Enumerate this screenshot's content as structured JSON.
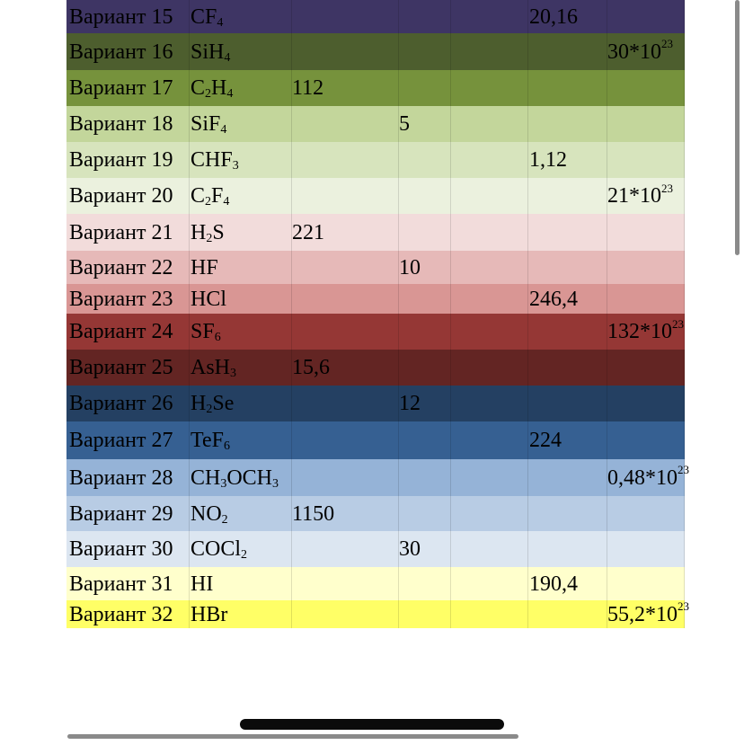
{
  "table": {
    "rows": [
      {
        "variant": "Вариант 15",
        "formula": [
          "CF",
          "4",
          ""
        ],
        "col_a": "",
        "col_b": "",
        "col_c": "",
        "col_d": "20,16",
        "col_e": [
          "",
          ""
        ],
        "bg": "#3e3564",
        "height": 37
      },
      {
        "variant": "Вариант 16",
        "formula": [
          "SiH",
          "4",
          ""
        ],
        "col_a": "",
        "col_b": "",
        "col_c": "",
        "col_d": "",
        "col_e": [
          "30*10",
          "23"
        ],
        "bg": "#4d5e2e",
        "height": 41
      },
      {
        "variant": "Вариант 17",
        "formula": [
          "C",
          "2",
          "H",
          "4"
        ],
        "col_a": "112",
        "col_b": "",
        "col_c": "",
        "col_d": "",
        "col_e": [
          "",
          ""
        ],
        "bg": "#76923c",
        "height": 40
      },
      {
        "variant": "Вариант 18",
        "formula": [
          "SiF",
          "4",
          ""
        ],
        "col_a": "",
        "col_b": "5",
        "col_c": "",
        "col_d": "",
        "col_e": [
          "",
          ""
        ],
        "bg": "#c3d69b",
        "height": 40
      },
      {
        "variant": "Вариант 19",
        "formula": [
          "CHF",
          "3",
          ""
        ],
        "col_a": "",
        "col_b": "",
        "col_c": "",
        "col_d": "1,12",
        "col_e": [
          "",
          ""
        ],
        "bg": "#d7e4bd",
        "height": 40
      },
      {
        "variant": "Вариант 20",
        "formula": [
          "C",
          "2",
          "F",
          "4"
        ],
        "col_a": "",
        "col_b": "",
        "col_c": "",
        "col_d": "",
        "col_e": [
          "21*10",
          "23"
        ],
        "bg": "#ebf1de",
        "height": 40
      },
      {
        "variant": "Вариант 21",
        "formula": [
          "H",
          "2",
          "S",
          ""
        ],
        "col_a": "221",
        "col_b": "",
        "col_c": "",
        "col_d": "",
        "col_e": [
          "",
          ""
        ],
        "bg": "#f2dcdb",
        "height": 41
      },
      {
        "variant": "Вариант 22",
        "formula": [
          "HF",
          "",
          ""
        ],
        "col_a": "",
        "col_b": "10",
        "col_c": "",
        "col_d": "",
        "col_e": [
          "",
          ""
        ],
        "bg": "#e6b9b8",
        "height": 37
      },
      {
        "variant": "Вариант 23",
        "formula": [
          "HCl",
          "",
          ""
        ],
        "col_a": "",
        "col_b": "",
        "col_c": "",
        "col_d": "246,4",
        "col_e": [
          "",
          ""
        ],
        "bg": "#d99694",
        "height": 33
      },
      {
        "variant": "Вариант 24",
        "formula": [
          "SF",
          "6",
          ""
        ],
        "col_a": "",
        "col_b": "",
        "col_c": "",
        "col_d": "",
        "col_e": [
          "132*10",
          "23"
        ],
        "bg": "#953735",
        "height": 40
      },
      {
        "variant": "Вариант 25",
        "formula": [
          "AsH",
          "3",
          ""
        ],
        "col_a": "15,6",
        "col_b": "",
        "col_c": "",
        "col_d": "",
        "col_e": [
          "",
          ""
        ],
        "bg": "#632523",
        "height": 40
      },
      {
        "variant": "Вариант 26",
        "formula": [
          "H",
          "2",
          "Se",
          ""
        ],
        "col_a": "",
        "col_b": "12",
        "col_c": "",
        "col_d": "",
        "col_e": [
          "",
          ""
        ],
        "bg": "#244062",
        "height": 40
      },
      {
        "variant": "Вариант 27",
        "formula": [
          "TeF",
          "6",
          ""
        ],
        "col_a": "",
        "col_b": "",
        "col_c": "",
        "col_d": "224",
        "col_e": [
          "",
          ""
        ],
        "bg": "#366092",
        "height": 42
      },
      {
        "variant": "Вариант 28",
        "formula": [
          "CH",
          "3",
          "OCH",
          "3"
        ],
        "col_a": "",
        "col_b": "",
        "col_c": "",
        "col_d": "",
        "col_e": [
          "0,48*10",
          "23"
        ],
        "bg": "#95b3d7",
        "height": 41
      },
      {
        "variant": "Вариант 29",
        "formula": [
          "NO",
          "2",
          ""
        ],
        "col_a": "1150",
        "col_b": "",
        "col_c": "",
        "col_d": "",
        "col_e": [
          "",
          ""
        ],
        "bg": "#b8cce4",
        "height": 39
      },
      {
        "variant": "Вариант 30",
        "formula": [
          "COCl",
          "2",
          ""
        ],
        "col_a": "",
        "col_b": "30",
        "col_c": "",
        "col_d": "",
        "col_e": [
          "",
          ""
        ],
        "bg": "#dce6f1",
        "height": 40
      },
      {
        "variant": "Вариант 31",
        "formula": [
          "HI",
          "",
          ""
        ],
        "col_a": "",
        "col_b": "",
        "col_c": "",
        "col_d": "190,4",
        "col_e": [
          "",
          ""
        ],
        "bg": "#ffffcc",
        "height": 37
      },
      {
        "variant": "Вариант 32",
        "formula": [
          "HBr",
          "",
          ""
        ],
        "col_a": "",
        "col_b": "",
        "col_c": "",
        "col_d": "",
        "col_e": [
          "55,2*10",
          "23"
        ],
        "bg": "#ffff66",
        "height": 31
      }
    ]
  },
  "colors": {
    "home_indicator": "#0b0b0b",
    "scrollbar": "#8a8a8a"
  }
}
